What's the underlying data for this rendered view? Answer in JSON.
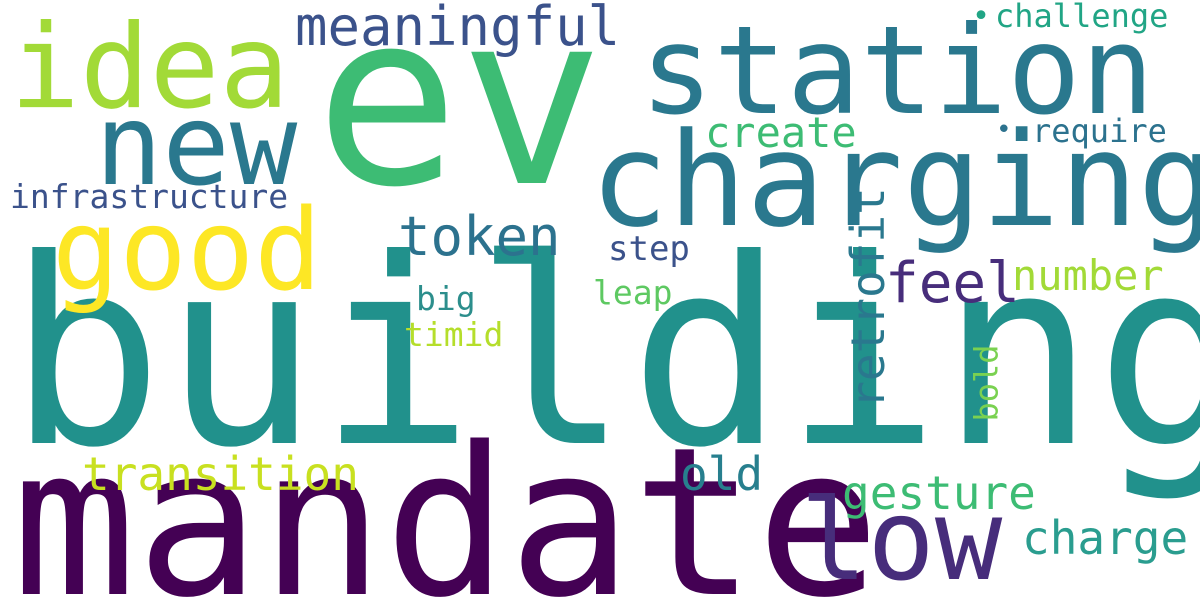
{
  "words": {
    "building": {
      "text": "building",
      "color": "#21918c"
    },
    "mandate": {
      "text": "mandate",
      "color": "#440154"
    },
    "ev": {
      "text": "ev",
      "color": "#3dbc74"
    },
    "charging": {
      "text": "charging",
      "color": "#2a788e"
    },
    "station": {
      "text": "station",
      "color": "#2a788e"
    },
    "idea": {
      "text": "idea",
      "color": "#a2da37"
    },
    "new": {
      "text": "new",
      "color": "#2a788e"
    },
    "good": {
      "text": "good",
      "color": "#fde725"
    },
    "low": {
      "text": "low",
      "color": "#472d7b"
    },
    "meaningful": {
      "text": "meaningful",
      "color": "#3b528b"
    },
    "token": {
      "text": "token",
      "color": "#2c728e"
    },
    "retrofit": {
      "text": "retrofit",
      "color": "#2a788e"
    },
    "feel": {
      "text": "feel",
      "color": "#472d7b"
    },
    "number": {
      "text": "number",
      "color": "#a2da37"
    },
    "infrastructure": {
      "text": "infrastructure",
      "color": "#3b528b"
    },
    "create": {
      "text": "create",
      "color": "#3dbc74"
    },
    "challenge": {
      "text": "challenge",
      "color": "#21a585"
    },
    "require": {
      "text": "require",
      "color": "#2c728e"
    },
    "transition": {
      "text": "transition",
      "color": "#c8e020"
    },
    "gesture": {
      "text": "gesture",
      "color": "#3dbc74"
    },
    "charge": {
      "text": "charge",
      "color": "#2a9d8f"
    },
    "old": {
      "text": "old",
      "color": "#277f8e"
    },
    "step": {
      "text": "step",
      "color": "#3b528b"
    },
    "leap": {
      "text": "leap",
      "color": "#5ec962"
    },
    "big": {
      "text": "big",
      "color": "#2c8e8c"
    },
    "timid": {
      "text": "timid",
      "color": "#b5de2b"
    },
    "bold": {
      "text": "bold",
      "color": "#7ad151"
    },
    "dot1": {
      "text": "•",
      "color": "#21a585"
    },
    "dot2": {
      "text": "•",
      "color": "#2c728e"
    }
  }
}
